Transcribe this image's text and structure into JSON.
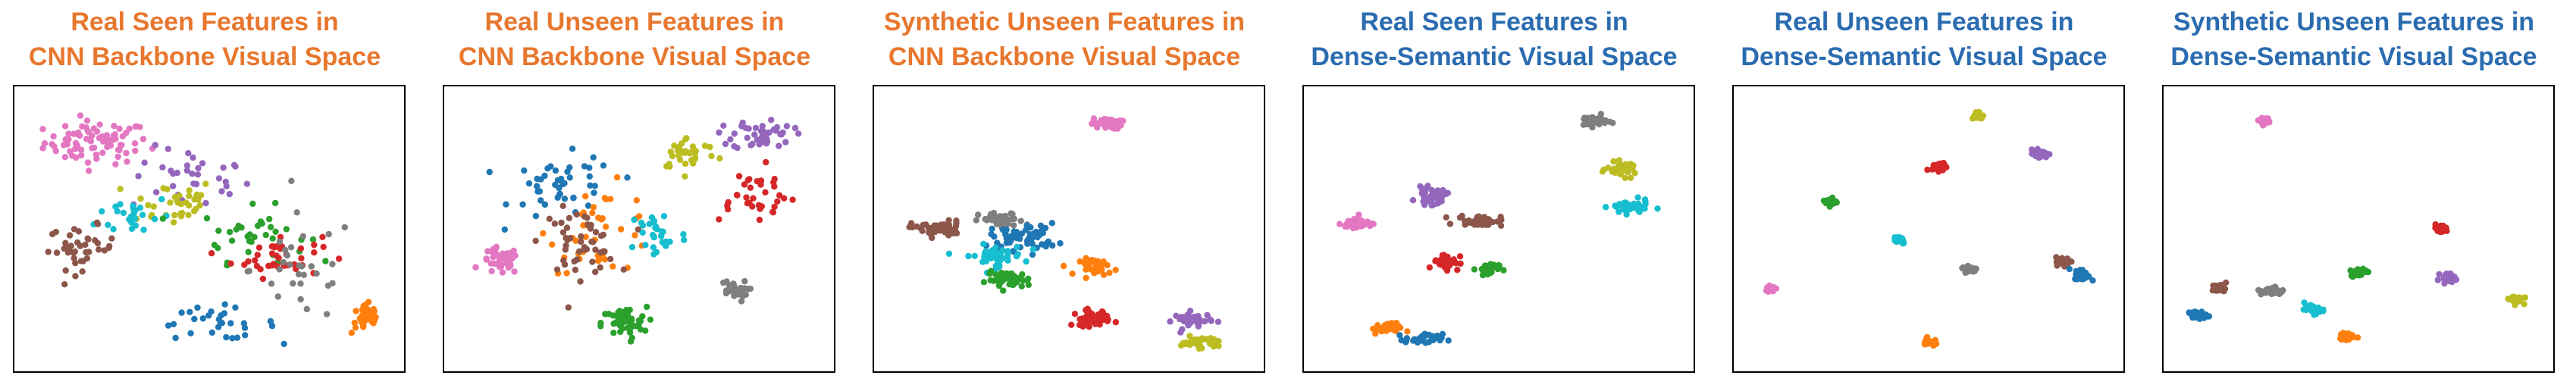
{
  "palette": {
    "blue": "#1f77b4",
    "orange": "#ff7f0e",
    "green": "#2ca02c",
    "red": "#d62728",
    "purple": "#9467bd",
    "brown": "#8c564b",
    "pink": "#e377c2",
    "gray": "#7f7f7f",
    "olive": "#bcbd22",
    "cyan": "#17becf"
  },
  "title_colors": {
    "orange": "#e8772e",
    "blue": "#2b6cb0"
  },
  "chart_data": [
    {
      "type": "scatter",
      "title_line1": "Real Seen Features in",
      "title_line2": "CNN Backbone Visual Space",
      "title_color": "orange",
      "xlim": [
        0,
        100
      ],
      "ylim": [
        0,
        100
      ],
      "grid": false,
      "clusters": [
        {
          "color": "pink",
          "x": 20,
          "y": 82,
          "sx": 14,
          "sy": 8,
          "n": 80
        },
        {
          "color": "purple",
          "x": 45,
          "y": 68,
          "sx": 16,
          "sy": 12,
          "n": 35
        },
        {
          "color": "olive",
          "x": 40,
          "y": 60,
          "sx": 12,
          "sy": 9,
          "n": 35
        },
        {
          "color": "cyan",
          "x": 30,
          "y": 55,
          "sx": 10,
          "sy": 8,
          "n": 25
        },
        {
          "color": "green",
          "x": 62,
          "y": 48,
          "sx": 14,
          "sy": 10,
          "n": 35
        },
        {
          "color": "red",
          "x": 68,
          "y": 40,
          "sx": 12,
          "sy": 8,
          "n": 40
        },
        {
          "color": "brown",
          "x": 16,
          "y": 43,
          "sx": 9,
          "sy": 8,
          "n": 40
        },
        {
          "color": "blue",
          "x": 52,
          "y": 15,
          "sx": 16,
          "sy": 6,
          "n": 30
        },
        {
          "color": "orange",
          "x": 92,
          "y": 17,
          "sx": 4,
          "sy": 6,
          "n": 35
        },
        {
          "color": "gray",
          "x": 75,
          "y": 35,
          "sx": 14,
          "sy": 20,
          "n": 30
        }
      ]
    },
    {
      "type": "scatter",
      "title_line1": "Real Unseen Features in",
      "title_line2": "CNN Backbone Visual Space",
      "title_color": "orange",
      "xlim": [
        0,
        100
      ],
      "ylim": [
        0,
        100
      ],
      "grid": false,
      "clusters": [
        {
          "color": "pink",
          "x": 13,
          "y": 38,
          "sx": 5,
          "sy": 5,
          "n": 40
        },
        {
          "color": "blue",
          "x": 30,
          "y": 65,
          "sx": 14,
          "sy": 12,
          "n": 45
        },
        {
          "color": "orange",
          "x": 40,
          "y": 50,
          "sx": 14,
          "sy": 16,
          "n": 40
        },
        {
          "color": "brown",
          "x": 34,
          "y": 45,
          "sx": 10,
          "sy": 12,
          "n": 50
        },
        {
          "color": "green",
          "x": 46,
          "y": 15,
          "sx": 6,
          "sy": 6,
          "n": 50
        },
        {
          "color": "cyan",
          "x": 55,
          "y": 48,
          "sx": 8,
          "sy": 10,
          "n": 30
        },
        {
          "color": "olive",
          "x": 63,
          "y": 78,
          "sx": 8,
          "sy": 6,
          "n": 35
        },
        {
          "color": "purple",
          "x": 83,
          "y": 85,
          "sx": 8,
          "sy": 6,
          "n": 45
        },
        {
          "color": "red",
          "x": 80,
          "y": 63,
          "sx": 12,
          "sy": 10,
          "n": 35
        },
        {
          "color": "gray",
          "x": 75,
          "y": 27,
          "sx": 4,
          "sy": 4,
          "n": 25
        }
      ]
    },
    {
      "type": "scatter",
      "title_line1": "Synthetic Unseen Features in",
      "title_line2": "CNN Backbone Visual Space",
      "title_color": "orange",
      "xlim": [
        0,
        100
      ],
      "ylim": [
        0,
        100
      ],
      "grid": false,
      "clusters": [
        {
          "color": "pink",
          "x": 60,
          "y": 89,
          "sx": 4,
          "sy": 2,
          "n": 40
        },
        {
          "color": "brown",
          "x": 15,
          "y": 50,
          "sx": 7,
          "sy": 3,
          "n": 45
        },
        {
          "color": "gray",
          "x": 32,
          "y": 53,
          "sx": 6,
          "sy": 3,
          "n": 40
        },
        {
          "color": "blue",
          "x": 38,
          "y": 47,
          "sx": 9,
          "sy": 5,
          "n": 55
        },
        {
          "color": "cyan",
          "x": 30,
          "y": 40,
          "sx": 8,
          "sy": 4,
          "n": 45
        },
        {
          "color": "green",
          "x": 34,
          "y": 31,
          "sx": 6,
          "sy": 3,
          "n": 45
        },
        {
          "color": "orange",
          "x": 58,
          "y": 36,
          "sx": 5,
          "sy": 3,
          "n": 35
        },
        {
          "color": "red",
          "x": 56,
          "y": 17,
          "sx": 5,
          "sy": 3,
          "n": 40
        },
        {
          "color": "purple",
          "x": 83,
          "y": 16,
          "sx": 5,
          "sy": 3,
          "n": 40
        },
        {
          "color": "olive",
          "x": 85,
          "y": 8,
          "sx": 5,
          "sy": 2,
          "n": 40
        }
      ]
    },
    {
      "type": "scatter",
      "title_line1": "Real Seen Features in",
      "title_line2": "Dense-Semantic Visual Space",
      "title_color": "blue",
      "xlim": [
        0,
        100
      ],
      "ylim": [
        0,
        100
      ],
      "grid": false,
      "clusters": [
        {
          "color": "gray",
          "x": 75,
          "y": 90,
          "sx": 4,
          "sy": 2,
          "n": 35
        },
        {
          "color": "olive",
          "x": 83,
          "y": 72,
          "sx": 4,
          "sy": 2.5,
          "n": 40
        },
        {
          "color": "cyan",
          "x": 85,
          "y": 58,
          "sx": 5,
          "sy": 2.5,
          "n": 45
        },
        {
          "color": "pink",
          "x": 12,
          "y": 52,
          "sx": 4,
          "sy": 2.5,
          "n": 40
        },
        {
          "color": "purple",
          "x": 32,
          "y": 62,
          "sx": 4,
          "sy": 3,
          "n": 40
        },
        {
          "color": "brown",
          "x": 45,
          "y": 53,
          "sx": 6,
          "sy": 2,
          "n": 40
        },
        {
          "color": "red",
          "x": 36,
          "y": 38,
          "sx": 3.5,
          "sy": 3,
          "n": 40
        },
        {
          "color": "green",
          "x": 47,
          "y": 35,
          "sx": 3,
          "sy": 2.5,
          "n": 30
        },
        {
          "color": "orange",
          "x": 20,
          "y": 13,
          "sx": 4,
          "sy": 2,
          "n": 30
        },
        {
          "color": "blue",
          "x": 30,
          "y": 9,
          "sx": 5,
          "sy": 2,
          "n": 30
        }
      ]
    },
    {
      "type": "scatter",
      "title_line1": "Real Unseen Features in",
      "title_line2": "Dense-Semantic Visual Space",
      "title_color": "blue",
      "xlim": [
        0,
        100
      ],
      "ylim": [
        0,
        100
      ],
      "grid": false,
      "clusters": [
        {
          "color": "olive",
          "x": 63,
          "y": 92,
          "sx": 1.5,
          "sy": 1.5,
          "n": 25
        },
        {
          "color": "purple",
          "x": 80,
          "y": 78,
          "sx": 2,
          "sy": 1.5,
          "n": 35
        },
        {
          "color": "red",
          "x": 53,
          "y": 73,
          "sx": 2,
          "sy": 1.5,
          "n": 30
        },
        {
          "color": "green",
          "x": 24,
          "y": 60,
          "sx": 1.5,
          "sy": 1.5,
          "n": 30
        },
        {
          "color": "cyan",
          "x": 42,
          "y": 46,
          "sx": 2,
          "sy": 1.5,
          "n": 30
        },
        {
          "color": "gray",
          "x": 61,
          "y": 35,
          "sx": 2,
          "sy": 1.5,
          "n": 30
        },
        {
          "color": "brown",
          "x": 86,
          "y": 38,
          "sx": 2,
          "sy": 1.5,
          "n": 30
        },
        {
          "color": "blue",
          "x": 91,
          "y": 33,
          "sx": 2,
          "sy": 2,
          "n": 35
        },
        {
          "color": "pink",
          "x": 8,
          "y": 28,
          "sx": 1.5,
          "sy": 1.2,
          "n": 30
        },
        {
          "color": "orange",
          "x": 50,
          "y": 8,
          "sx": 1.5,
          "sy": 1.5,
          "n": 25
        }
      ]
    },
    {
      "type": "scatter",
      "title_line1": "Synthetic Unseen Features in",
      "title_line2": "Dense-Semantic Visual Space",
      "title_color": "blue",
      "xlim": [
        0,
        100
      ],
      "ylim": [
        0,
        100
      ],
      "grid": false,
      "clusters": [
        {
          "color": "pink",
          "x": 25,
          "y": 90,
          "sx": 1.5,
          "sy": 1.2,
          "n": 30
        },
        {
          "color": "red",
          "x": 72,
          "y": 50,
          "sx": 2,
          "sy": 1.5,
          "n": 30
        },
        {
          "color": "green",
          "x": 50,
          "y": 34,
          "sx": 2,
          "sy": 1.5,
          "n": 30
        },
        {
          "color": "purple",
          "x": 74,
          "y": 32,
          "sx": 2,
          "sy": 1.5,
          "n": 30
        },
        {
          "color": "brown",
          "x": 13,
          "y": 28,
          "sx": 2,
          "sy": 1.5,
          "n": 30
        },
        {
          "color": "gray",
          "x": 27,
          "y": 27,
          "sx": 3,
          "sy": 1.5,
          "n": 35
        },
        {
          "color": "blue",
          "x": 7,
          "y": 18,
          "sx": 2.5,
          "sy": 1.5,
          "n": 35
        },
        {
          "color": "cyan",
          "x": 38,
          "y": 20,
          "sx": 2.5,
          "sy": 1.5,
          "n": 35
        },
        {
          "color": "orange",
          "x": 47,
          "y": 10,
          "sx": 2,
          "sy": 1.5,
          "n": 30
        },
        {
          "color": "olive",
          "x": 92,
          "y": 24,
          "sx": 2,
          "sy": 1.5,
          "n": 30
        }
      ]
    }
  ]
}
